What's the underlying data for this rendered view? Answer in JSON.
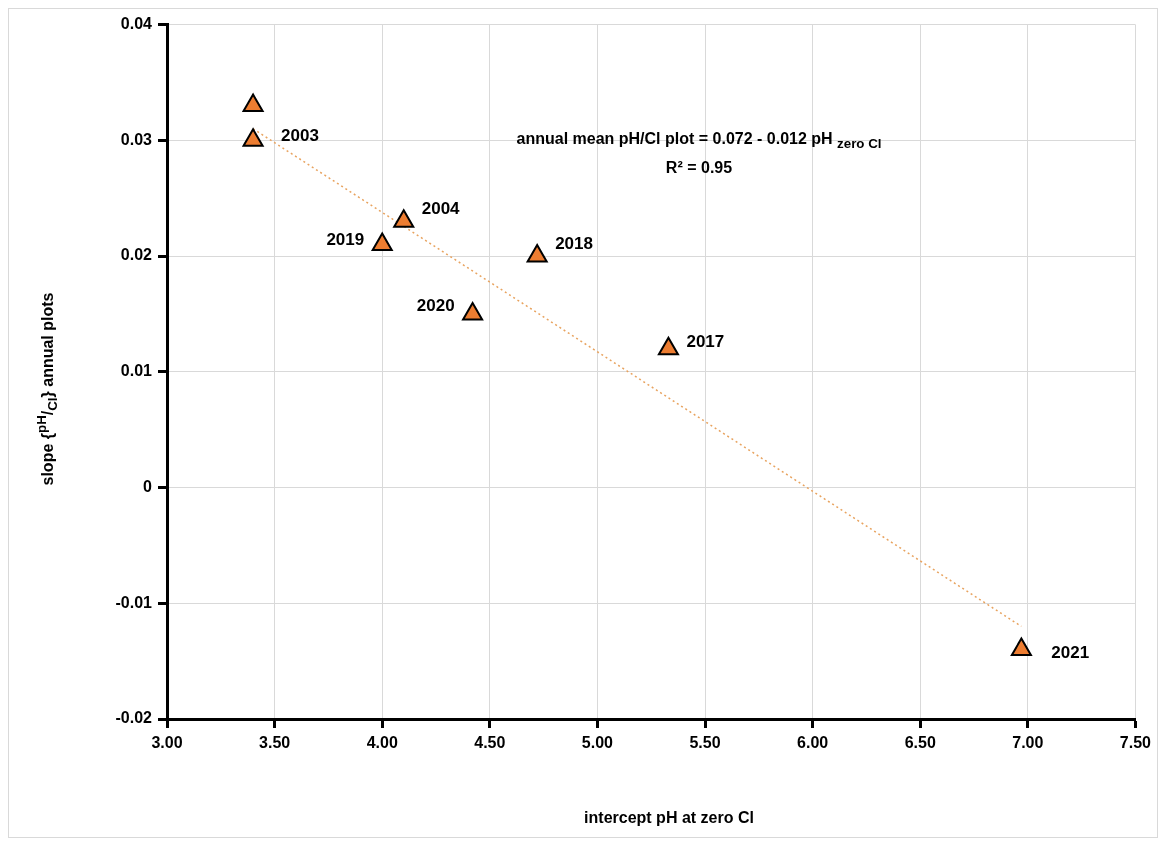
{
  "chart_data": {
    "type": "scatter",
    "xlabel": "intercept pH at zero Cl",
    "ylabel": "slope {$^{pH}$/$_{Cl}$} annual plots",
    "annotations": [
      "annual mean pH/Cl plot = 0.072 - 0.012 pH $_{zero Cl}$",
      "R² = 0.95",
      {
        "text": "2003",
        "x": 3.4,
        "y": 0.03
      },
      {
        "text": "2004",
        "x": 4.1,
        "y": 0.023
      },
      {
        "text": "2019",
        "x": 4.0,
        "y": 0.021
      },
      {
        "text": "2018",
        "x": 4.72,
        "y": 0.02
      },
      {
        "text": "2020",
        "x": 4.42,
        "y": 0.015
      },
      {
        "text": "2017",
        "x": 5.33,
        "y": 0.012
      },
      {
        "text": "2021",
        "x": 6.97,
        "y": -0.014
      }
    ],
    "xlim": [
      3,
      7.5
    ],
    "xticks": [
      {
        "value": 3,
        "label": "3.00"
      },
      {
        "value": 3.5,
        "label": "3.50"
      },
      {
        "value": 4,
        "label": "4.00"
      },
      {
        "value": 4.5,
        "label": "4.50"
      },
      {
        "value": 5,
        "label": "5.00"
      },
      {
        "value": 5.5,
        "label": "5.50"
      },
      {
        "value": 6,
        "label": "6.00"
      },
      {
        "value": 6.5,
        "label": "6.50"
      },
      {
        "value": 7,
        "label": "7.00"
      },
      {
        "value": 7.5,
        "label": "7.50"
      }
    ],
    "ylim": [
      -0.02,
      0.04
    ],
    "yticks": [
      -0.02,
      -0.01,
      0,
      0.01,
      0.02,
      0.03,
      0.04
    ],
    "grid": true,
    "marker": "triangle",
    "series": [
      {
        "color": "#ed7d31",
        "x": [
          3.4,
          3.4,
          4.1,
          4.0,
          4.72,
          4.42,
          5.33,
          6.97
        ],
        "values": [
          0.033,
          0.03,
          0.023,
          0.021,
          0.02,
          0.015,
          0.012,
          -0.014
        ]
      },
      {
        "type": "line",
        "color": "#e8a35f",
        "line_style": "dotted",
        "marker": "none",
        "x": [
          3.4,
          6.97
        ],
        "values": [
          0.031,
          -0.012
        ]
      }
    ]
  }
}
